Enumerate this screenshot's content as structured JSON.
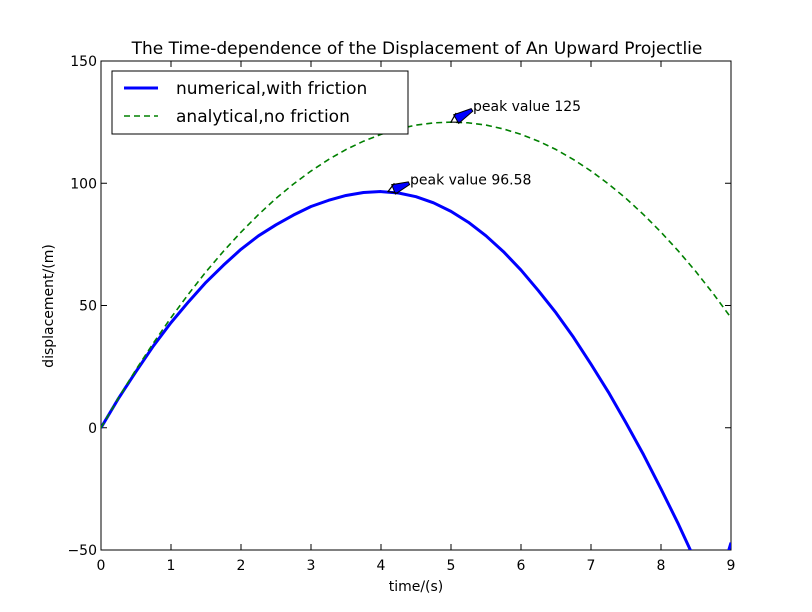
{
  "chart_data": {
    "type": "line",
    "title": "The Time-dependence of the Displacement of An Upward Projectlie",
    "xlabel": "time/(s)",
    "ylabel": "displacement/(m)",
    "xlim": [
      0,
      9
    ],
    "ylim": [
      -50,
      150
    ],
    "xticks": [
      0,
      1,
      2,
      3,
      4,
      5,
      6,
      7,
      8,
      9
    ],
    "yticks": [
      -50,
      0,
      50,
      100,
      150
    ],
    "grid": false,
    "legend_position": "top-left",
    "series": [
      {
        "name": "numerical,with friction",
        "style": "solid",
        "color": "#0000ff",
        "x": [
          0,
          0.25,
          0.5,
          0.75,
          1,
          1.25,
          1.5,
          1.75,
          2,
          2.25,
          2.5,
          2.75,
          3,
          3.25,
          3.5,
          3.75,
          4,
          4.25,
          4.5,
          4.75,
          5,
          5.25,
          5.5,
          5.75,
          6,
          6.25,
          6.5,
          6.75,
          7,
          7.25,
          7.5,
          7.75,
          8,
          8.25,
          8.5,
          8.75,
          9
        ],
        "y": [
          0,
          12.0,
          23.0,
          33.5,
          43.0,
          51.5,
          59.5,
          66.5,
          73.0,
          78.5,
          83.0,
          87.0,
          90.5,
          93.0,
          95.0,
          96.2,
          96.6,
          96.0,
          94.5,
          92.0,
          88.5,
          84.0,
          78.5,
          72.0,
          64.5,
          56.0,
          47.0,
          37.0,
          26.0,
          14.5,
          2.0,
          -11.0,
          -25.0,
          -39.5,
          -55.0,
          -71.0,
          -47.0
        ]
      },
      {
        "name": "analytical,no friction",
        "style": "dashed",
        "color": "#008000",
        "x": [
          0,
          0.25,
          0.5,
          0.75,
          1,
          1.25,
          1.5,
          1.75,
          2,
          2.25,
          2.5,
          2.75,
          3,
          3.25,
          3.5,
          3.75,
          4,
          4.25,
          4.5,
          4.75,
          5,
          5.25,
          5.5,
          5.75,
          6,
          6.25,
          6.5,
          6.75,
          7,
          7.25,
          7.5,
          7.75,
          8,
          8.25,
          8.5,
          8.75,
          9
        ],
        "y": [
          0,
          12.2,
          23.8,
          34.7,
          45.0,
          54.7,
          63.8,
          72.2,
          80.0,
          87.2,
          93.8,
          99.7,
          105.0,
          109.7,
          113.8,
          117.2,
          120.0,
          122.2,
          123.8,
          124.7,
          125.0,
          124.7,
          123.8,
          122.2,
          120.0,
          117.2,
          113.8,
          109.7,
          105.0,
          99.7,
          93.8,
          87.2,
          80.0,
          72.2,
          63.8,
          54.7,
          45.0
        ]
      }
    ],
    "annotations": [
      {
        "text": "peak value 125",
        "x": 5.0,
        "y": 125,
        "text_x": 5.3,
        "text_y": 130
      },
      {
        "text": "peak value 96.58",
        "x": 4.1,
        "y": 96.58,
        "text_x": 4.4,
        "text_y": 100
      }
    ]
  }
}
